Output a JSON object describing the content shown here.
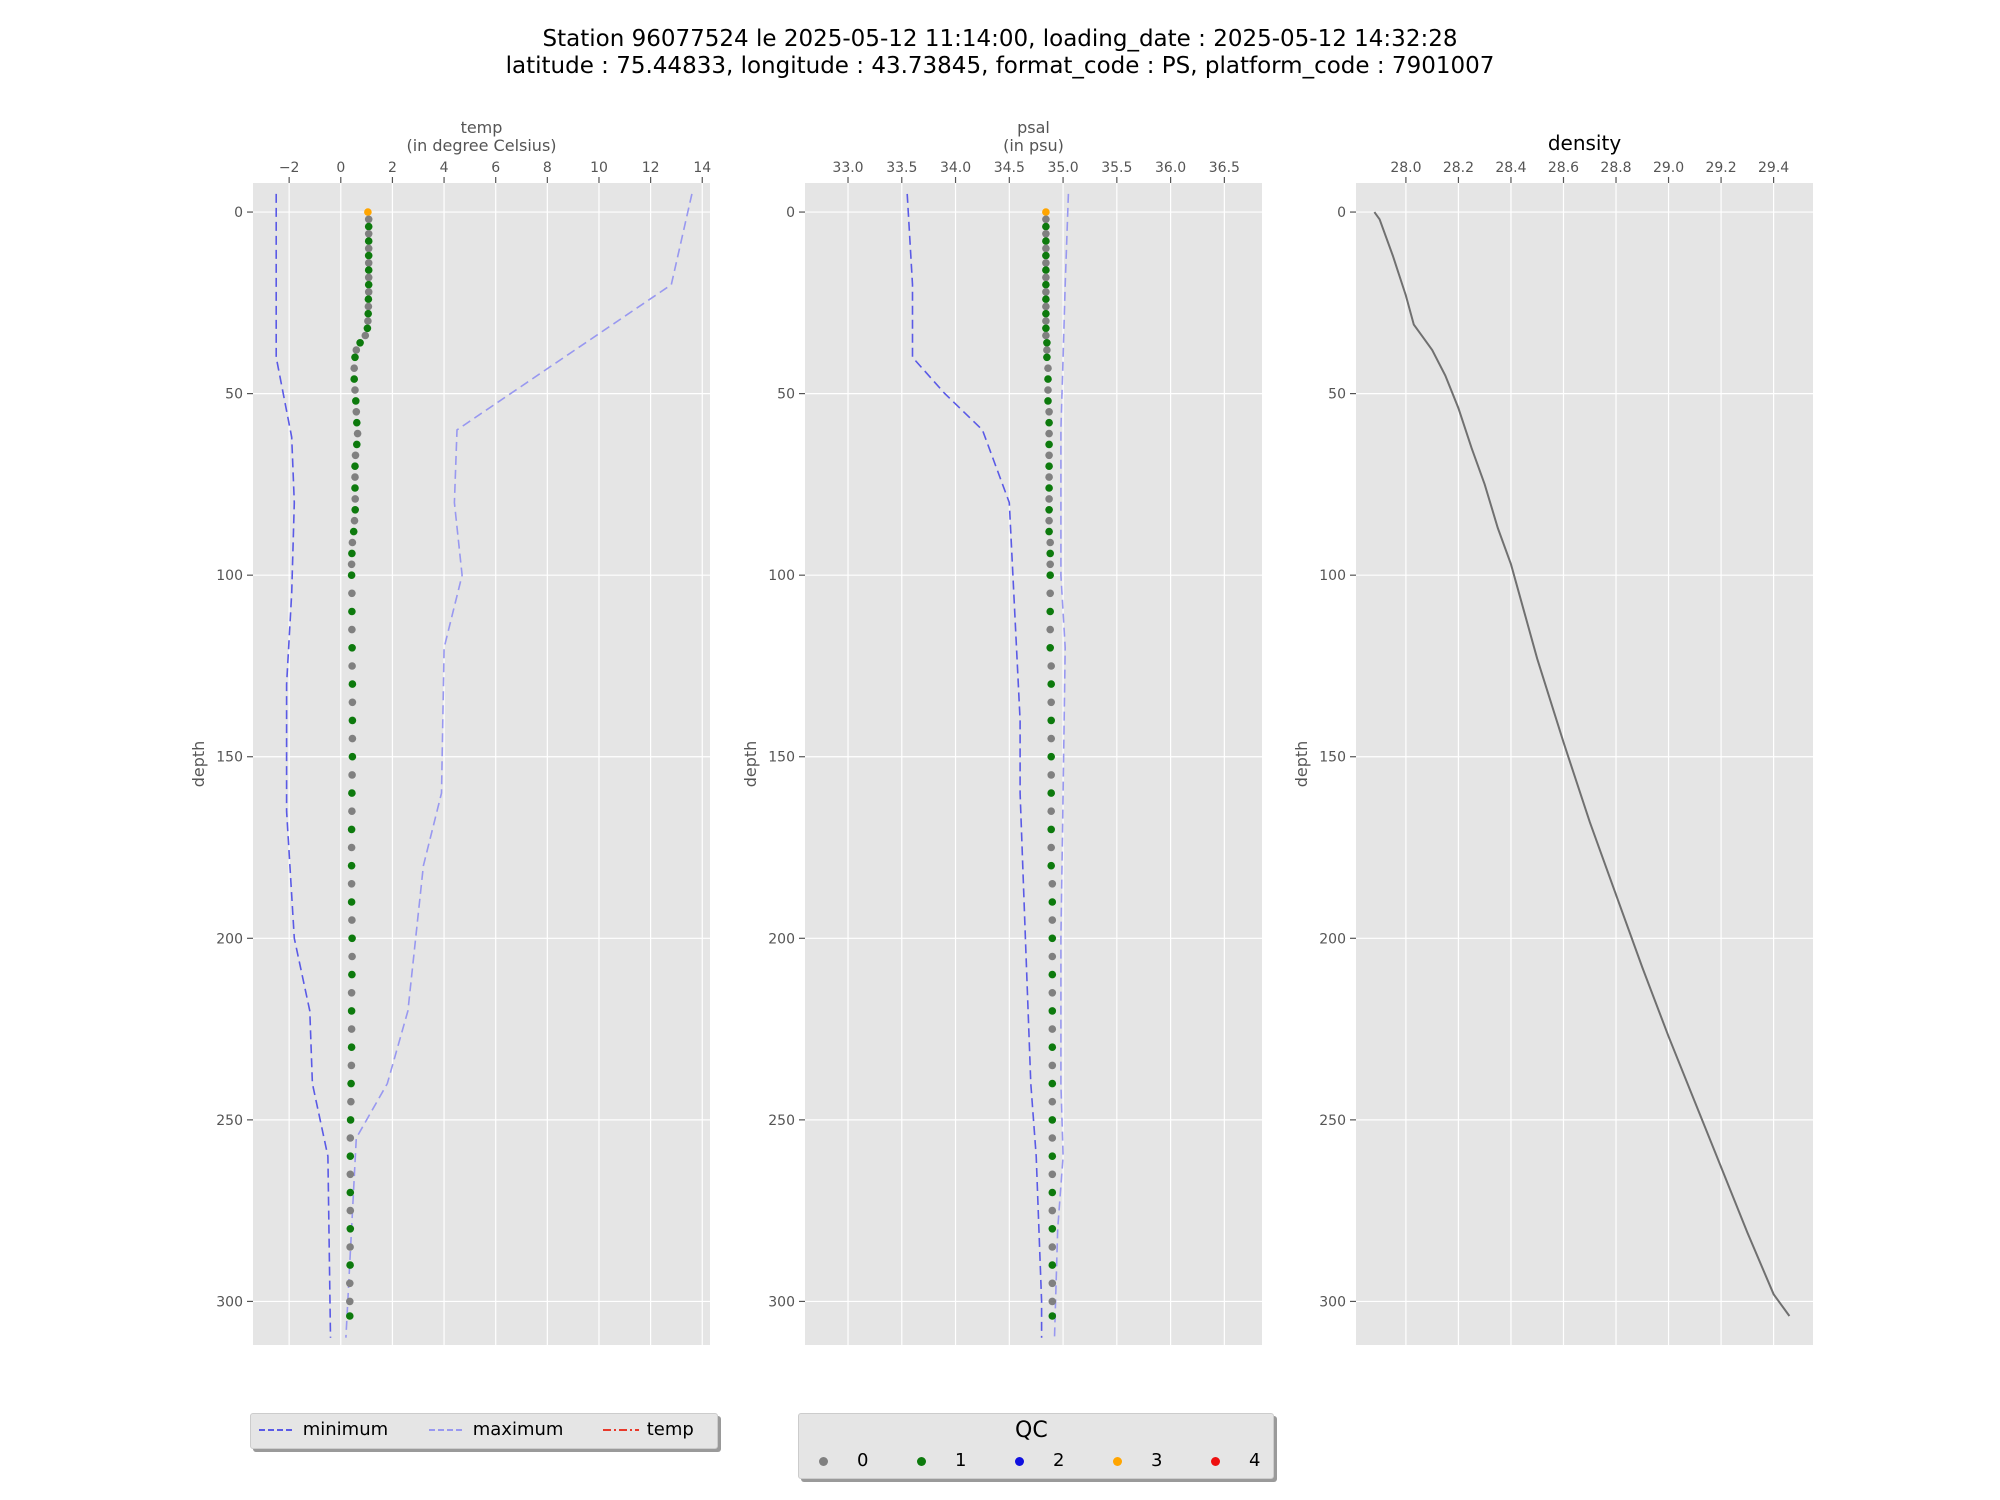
{
  "title": {
    "line1": "Station 96077524 le 2025-05-12 11:14:00, loading_date : 2025-05-12 14:32:28",
    "line2": "latitude : 75.44833, longitude : 43.73845, format_code : PS, platform_code : 7901007"
  },
  "chart_data": [
    {
      "type": "scatter",
      "id": "temp",
      "title": "",
      "xlabel": "temp\n(in degree Celsius)",
      "ylabel": "depth",
      "xlim": [
        -3.4,
        14.3
      ],
      "ylim": [
        312,
        -8
      ],
      "y_inverted": true,
      "xticks": [
        -2,
        0,
        2,
        4,
        6,
        8,
        10,
        12,
        14
      ],
      "xtick_labels": [
        "−2",
        "0",
        "2",
        "4",
        "6",
        "8",
        "10",
        "12",
        "14"
      ],
      "yticks": [
        0,
        50,
        100,
        150,
        200,
        250,
        300
      ],
      "grid": true,
      "x_axis_position": "top",
      "series": [
        {
          "name": "minimum",
          "style": "dashed",
          "color": "#5a5ae6",
          "points": [
            [
              -2.5,
              -5
            ],
            [
              -2.5,
              40
            ],
            [
              -1.9,
              62
            ],
            [
              -1.8,
              80
            ],
            [
              -1.9,
              105
            ],
            [
              -2.1,
              130
            ],
            [
              -2.1,
              165
            ],
            [
              -1.8,
              200
            ],
            [
              -1.2,
              220
            ],
            [
              -1.1,
              240
            ],
            [
              -0.5,
              260
            ],
            [
              -0.4,
              310
            ]
          ]
        },
        {
          "name": "maximum",
          "style": "dashed",
          "color": "#9898f0",
          "points": [
            [
              13.6,
              -5
            ],
            [
              12.8,
              20
            ],
            [
              4.5,
              60
            ],
            [
              4.4,
              80
            ],
            [
              4.7,
              100
            ],
            [
              4.0,
              120
            ],
            [
              3.9,
              160
            ],
            [
              3.2,
              180
            ],
            [
              2.6,
              220
            ],
            [
              1.8,
              240
            ],
            [
              0.6,
              255
            ],
            [
              0.2,
              310
            ]
          ]
        },
        {
          "name": "temp",
          "style": "dashdot",
          "color": "#e8392a",
          "points": []
        }
      ],
      "profile": {
        "depths": [
          0,
          2,
          4,
          6,
          8,
          10,
          12,
          14,
          16,
          18,
          20,
          22,
          24,
          26,
          28,
          30,
          32,
          34,
          36,
          38,
          40,
          43,
          46,
          49,
          52,
          55,
          58,
          61,
          64,
          67,
          70,
          73,
          76,
          79,
          82,
          85,
          88,
          91,
          94,
          97,
          100,
          105,
          110,
          115,
          120,
          125,
          130,
          135,
          140,
          145,
          150,
          155,
          160,
          165,
          170,
          175,
          180,
          185,
          190,
          195,
          200,
          205,
          210,
          215,
          220,
          225,
          230,
          235,
          240,
          245,
          250,
          255,
          260,
          265,
          270,
          275,
          280,
          285,
          290,
          295,
          300,
          304
        ],
        "values": [
          1.05,
          1.08,
          1.08,
          1.08,
          1.08,
          1.08,
          1.08,
          1.08,
          1.08,
          1.08,
          1.08,
          1.08,
          1.07,
          1.07,
          1.06,
          1.05,
          1.03,
          0.95,
          0.75,
          0.6,
          0.55,
          0.52,
          0.52,
          0.55,
          0.58,
          0.6,
          0.62,
          0.65,
          0.62,
          0.57,
          0.55,
          0.55,
          0.55,
          0.56,
          0.56,
          0.53,
          0.5,
          0.45,
          0.43,
          0.42,
          0.42,
          0.43,
          0.43,
          0.43,
          0.44,
          0.44,
          0.45,
          0.45,
          0.45,
          0.45,
          0.45,
          0.44,
          0.43,
          0.43,
          0.42,
          0.42,
          0.42,
          0.42,
          0.42,
          0.43,
          0.44,
          0.44,
          0.43,
          0.42,
          0.42,
          0.42,
          0.42,
          0.41,
          0.4,
          0.39,
          0.38,
          0.37,
          0.37,
          0.37,
          0.37,
          0.37,
          0.37,
          0.36,
          0.36,
          0.35,
          0.35,
          0.35
        ],
        "qc": [
          3,
          0,
          1,
          0,
          1,
          0,
          1,
          0,
          1,
          0,
          1,
          0,
          1,
          0,
          1,
          0,
          1,
          0,
          1,
          0,
          1,
          0,
          1,
          0,
          1,
          0,
          1,
          0,
          1,
          0,
          1,
          0,
          1,
          0,
          1,
          0,
          1,
          0,
          1,
          0,
          1,
          0,
          1,
          0,
          1,
          0,
          1,
          0,
          1,
          0,
          1,
          0,
          1,
          0,
          1,
          0,
          1,
          0,
          1,
          0,
          1,
          0,
          1,
          0,
          1,
          0,
          1,
          0,
          1,
          0,
          1,
          0,
          1,
          0,
          1,
          0,
          1,
          0,
          1,
          0,
          0,
          1
        ]
      }
    },
    {
      "type": "scatter",
      "id": "psal",
      "title": "",
      "xlabel": "psal\n(in psu)",
      "ylabel": "depth",
      "xlim": [
        32.6,
        36.85
      ],
      "ylim": [
        312,
        -8
      ],
      "y_inverted": true,
      "xticks": [
        33.0,
        33.5,
        34.0,
        34.5,
        35.0,
        35.5,
        36.0,
        36.5
      ],
      "xtick_labels": [
        "33.0",
        "33.5",
        "34.0",
        "34.5",
        "35.0",
        "35.5",
        "36.0",
        "36.5"
      ],
      "yticks": [
        0,
        50,
        100,
        150,
        200,
        250,
        300
      ],
      "grid": true,
      "x_axis_position": "top",
      "series": [
        {
          "name": "minimum",
          "style": "dashed",
          "color": "#5a5ae6",
          "points": [
            [
              33.55,
              -5
            ],
            [
              33.6,
              20
            ],
            [
              33.6,
              40
            ],
            [
              33.9,
              50
            ],
            [
              34.25,
              60
            ],
            [
              34.5,
              80
            ],
            [
              34.6,
              140
            ],
            [
              34.6,
              160
            ],
            [
              34.65,
              200
            ],
            [
              34.7,
              240
            ],
            [
              34.75,
              260
            ],
            [
              34.8,
              300
            ],
            [
              34.8,
              310
            ]
          ]
        },
        {
          "name": "maximum",
          "style": "dashed",
          "color": "#9898f0",
          "points": [
            [
              35.05,
              -5
            ],
            [
              35.02,
              20
            ],
            [
              35.0,
              40
            ],
            [
              34.98,
              60
            ],
            [
              34.98,
              100
            ],
            [
              35.02,
              120
            ],
            [
              35.0,
              160
            ],
            [
              34.98,
              200
            ],
            [
              34.98,
              240
            ],
            [
              35.0,
              260
            ],
            [
              34.95,
              280
            ],
            [
              34.92,
              310
            ]
          ]
        }
      ],
      "profile": {
        "depths": [
          0,
          2,
          4,
          6,
          8,
          10,
          12,
          14,
          16,
          18,
          20,
          22,
          24,
          26,
          28,
          30,
          32,
          34,
          36,
          38,
          40,
          43,
          46,
          49,
          52,
          55,
          58,
          61,
          64,
          67,
          70,
          73,
          76,
          79,
          82,
          85,
          88,
          91,
          94,
          97,
          100,
          105,
          110,
          115,
          120,
          125,
          130,
          135,
          140,
          145,
          150,
          155,
          160,
          165,
          170,
          175,
          180,
          185,
          190,
          195,
          200,
          205,
          210,
          215,
          220,
          225,
          230,
          235,
          240,
          245,
          250,
          255,
          260,
          265,
          270,
          275,
          280,
          285,
          290,
          295,
          300,
          304
        ],
        "values": [
          34.84,
          34.84,
          34.84,
          34.84,
          34.84,
          34.84,
          34.84,
          34.84,
          34.84,
          34.84,
          34.84,
          34.84,
          34.84,
          34.84,
          34.84,
          34.84,
          34.84,
          34.84,
          34.85,
          34.85,
          34.85,
          34.86,
          34.86,
          34.86,
          34.86,
          34.87,
          34.87,
          34.87,
          34.87,
          34.87,
          34.87,
          34.87,
          34.87,
          34.87,
          34.87,
          34.87,
          34.87,
          34.88,
          34.88,
          34.88,
          34.88,
          34.88,
          34.88,
          34.88,
          34.88,
          34.89,
          34.89,
          34.89,
          34.89,
          34.89,
          34.89,
          34.89,
          34.89,
          34.89,
          34.89,
          34.89,
          34.89,
          34.9,
          34.9,
          34.9,
          34.9,
          34.9,
          34.9,
          34.9,
          34.9,
          34.9,
          34.9,
          34.9,
          34.9,
          34.9,
          34.9,
          34.9,
          34.9,
          34.9,
          34.9,
          34.9,
          34.9,
          34.9,
          34.9,
          34.9,
          34.9,
          34.9
        ],
        "qc": [
          3,
          0,
          1,
          0,
          1,
          0,
          1,
          0,
          1,
          0,
          1,
          0,
          1,
          0,
          1,
          0,
          1,
          0,
          1,
          0,
          1,
          0,
          1,
          0,
          1,
          0,
          1,
          0,
          1,
          0,
          1,
          0,
          1,
          0,
          1,
          0,
          1,
          0,
          1,
          0,
          1,
          0,
          1,
          0,
          1,
          0,
          1,
          0,
          1,
          0,
          1,
          0,
          1,
          0,
          1,
          0,
          1,
          0,
          1,
          0,
          1,
          0,
          1,
          0,
          1,
          0,
          1,
          0,
          1,
          0,
          1,
          0,
          1,
          0,
          1,
          0,
          1,
          0,
          1,
          0,
          0,
          1
        ]
      }
    },
    {
      "type": "line",
      "id": "density",
      "title": "density",
      "xlabel": "",
      "ylabel": "depth",
      "xlim": [
        27.81,
        29.55
      ],
      "ylim": [
        312,
        -8
      ],
      "y_inverted": true,
      "xticks": [
        28.0,
        28.2,
        28.4,
        28.6,
        28.8,
        29.0,
        29.2,
        29.4
      ],
      "xtick_labels": [
        "28.0",
        "28.2",
        "28.4",
        "28.6",
        "28.8",
        "29.0",
        "29.2",
        "29.4"
      ],
      "yticks": [
        0,
        50,
        100,
        150,
        200,
        250,
        300
      ],
      "grid": true,
      "x_axis_position": "top",
      "series": [
        {
          "name": "",
          "style": "solid",
          "color": "#707070",
          "points": [
            [
              27.88,
              0
            ],
            [
              27.9,
              2
            ],
            [
              27.95,
              12
            ],
            [
              28.0,
              23
            ],
            [
              28.03,
              31
            ],
            [
              28.07,
              35
            ],
            [
              28.1,
              38
            ],
            [
              28.15,
              45
            ],
            [
              28.2,
              54
            ],
            [
              28.25,
              65
            ],
            [
              28.3,
              75
            ],
            [
              28.35,
              87
            ],
            [
              28.4,
              97
            ],
            [
              28.5,
              123
            ],
            [
              28.6,
              146
            ],
            [
              28.7,
              168
            ],
            [
              28.8,
              188
            ],
            [
              28.9,
              208
            ],
            [
              29.0,
              227
            ],
            [
              29.1,
              245
            ],
            [
              29.2,
              263
            ],
            [
              29.3,
              281
            ],
            [
              29.4,
              298
            ],
            [
              29.46,
              304
            ]
          ]
        }
      ]
    }
  ],
  "legends": {
    "lines": [
      {
        "label": "minimum",
        "style": "dashed",
        "color": "#5a5ae6"
      },
      {
        "label": "maximum",
        "style": "dashed",
        "color": "#9898f0"
      },
      {
        "label": "temp",
        "style": "dashdot",
        "color": "#e8392a"
      }
    ],
    "qc": {
      "title": "QC",
      "items": [
        {
          "label": "0",
          "color": "#808080"
        },
        {
          "label": "1",
          "color": "#0d7a0d"
        },
        {
          "label": "2",
          "color": "#1010e0"
        },
        {
          "label": "3",
          "color": "#ffa500"
        },
        {
          "label": "4",
          "color": "#ee1010"
        }
      ]
    }
  }
}
